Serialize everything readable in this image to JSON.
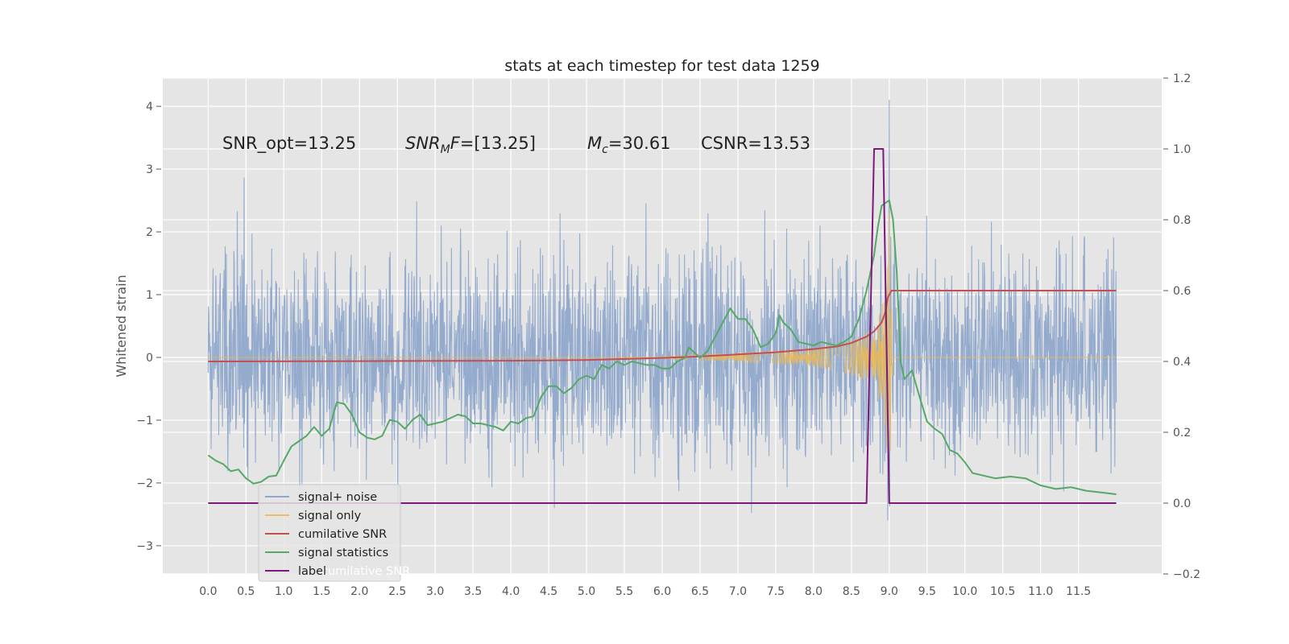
{
  "chart_data": {
    "type": "line",
    "title": "stats at each timestep for test data 1259",
    "xlabel": "",
    "ylabel": "Whitened strain",
    "y2label": "",
    "xlim": [
      -0.6,
      12.6
    ],
    "ylim": [
      -3.45,
      4.45
    ],
    "y2lim": [
      -0.2,
      1.2
    ],
    "grid": true,
    "x_ticks": [
      "0.0",
      "0.5",
      "1.0",
      "1.5",
      "2.0",
      "2.5",
      "3.0",
      "3.5",
      "4.0",
      "4.5",
      "5.0",
      "5.5",
      "6.0",
      "6.5",
      "7.0",
      "7.5",
      "8.0",
      "8.5",
      "9.0",
      "9.5",
      "10.0",
      "10.5",
      "11.0",
      "11.5"
    ],
    "y_ticks": [
      "4",
      "3",
      "2",
      "1",
      "0",
      "−1",
      "−2",
      "−3"
    ],
    "y2_ticks": [
      "1.2",
      "1.0",
      "0.8",
      "0.6",
      "0.4",
      "0.2",
      "0.0",
      "−0.2"
    ],
    "annotations": {
      "snr_opt": "SNR_opt=13.25",
      "snr_mf_label": "SNR",
      "snr_mf_sub": "M",
      "snr_mf_mid": "F",
      "snr_mf_value": "=[13.25]",
      "mc_label": "M",
      "mc_sub": "c",
      "mc_value": "=30.61",
      "csnr": "CSNR=13.53"
    },
    "legend": {
      "placement": "lower-left",
      "entries": [
        "signal+ noise",
        "signal only",
        "cumilative SNR",
        "signal statistics",
        "label"
      ],
      "ghost_text": "cumilative SNR"
    },
    "series": [
      {
        "name": "signal+ noise",
        "axis": "left",
        "color": "#8fa8cc",
        "x_range": [
          0.0,
          12.0
        ],
        "y_range": [
          -3.3,
          4.1
        ],
        "peak": {
          "x": 9.0,
          "y": 4.1
        }
      },
      {
        "name": "signal only",
        "axis": "left",
        "color": "#e8b85a",
        "envelope": [
          [
            6.0,
            0.02
          ],
          [
            6.5,
            0.05
          ],
          [
            7.0,
            0.08
          ],
          [
            7.5,
            0.11
          ],
          [
            8.0,
            0.16
          ],
          [
            8.3,
            0.22
          ],
          [
            8.5,
            0.28
          ],
          [
            8.7,
            0.4
          ],
          [
            8.8,
            0.52
          ],
          [
            8.9,
            0.78
          ],
          [
            8.95,
            1.2
          ],
          [
            9.0,
            2.3
          ],
          [
            9.05,
            0.0
          ]
        ]
      },
      {
        "name": "cumilative SNR",
        "axis": "right",
        "color": "#c44e52",
        "points": [
          [
            0.0,
            0.4
          ],
          [
            2.0,
            0.401
          ],
          [
            4.0,
            0.402
          ],
          [
            5.0,
            0.404
          ],
          [
            6.0,
            0.41
          ],
          [
            6.5,
            0.414
          ],
          [
            7.0,
            0.42
          ],
          [
            7.5,
            0.426
          ],
          [
            8.0,
            0.435
          ],
          [
            8.3,
            0.442
          ],
          [
            8.5,
            0.452
          ],
          [
            8.7,
            0.47
          ],
          [
            8.8,
            0.485
          ],
          [
            8.9,
            0.51
          ],
          [
            8.95,
            0.54
          ],
          [
            8.98,
            0.58
          ],
          [
            9.03,
            0.6
          ],
          [
            12.0,
            0.6
          ]
        ]
      },
      {
        "name": "signal statistics",
        "axis": "right",
        "color": "#55a868",
        "points": [
          [
            0.0,
            0.135
          ],
          [
            0.1,
            0.12
          ],
          [
            0.2,
            0.11
          ],
          [
            0.3,
            0.09
          ],
          [
            0.4,
            0.095
          ],
          [
            0.5,
            0.07
          ],
          [
            0.6,
            0.055
          ],
          [
            0.7,
            0.06
          ],
          [
            0.8,
            0.075
          ],
          [
            0.9,
            0.078
          ],
          [
            1.0,
            0.12
          ],
          [
            1.1,
            0.16
          ],
          [
            1.2,
            0.175
          ],
          [
            1.3,
            0.19
          ],
          [
            1.4,
            0.215
          ],
          [
            1.5,
            0.19
          ],
          [
            1.6,
            0.21
          ],
          [
            1.7,
            0.285
          ],
          [
            1.8,
            0.28
          ],
          [
            1.9,
            0.25
          ],
          [
            2.0,
            0.2
          ],
          [
            2.1,
            0.185
          ],
          [
            2.2,
            0.18
          ],
          [
            2.3,
            0.19
          ],
          [
            2.4,
            0.235
          ],
          [
            2.5,
            0.23
          ],
          [
            2.6,
            0.21
          ],
          [
            2.7,
            0.235
          ],
          [
            2.8,
            0.25
          ],
          [
            2.9,
            0.22
          ],
          [
            3.0,
            0.225
          ],
          [
            3.1,
            0.23
          ],
          [
            3.2,
            0.24
          ],
          [
            3.3,
            0.25
          ],
          [
            3.4,
            0.245
          ],
          [
            3.5,
            0.225
          ],
          [
            3.6,
            0.225
          ],
          [
            3.7,
            0.22
          ],
          [
            3.8,
            0.215
          ],
          [
            3.9,
            0.205
          ],
          [
            4.0,
            0.23
          ],
          [
            4.1,
            0.225
          ],
          [
            4.2,
            0.24
          ],
          [
            4.3,
            0.245
          ],
          [
            4.4,
            0.3
          ],
          [
            4.5,
            0.33
          ],
          [
            4.6,
            0.33
          ],
          [
            4.7,
            0.31
          ],
          [
            4.8,
            0.325
          ],
          [
            4.9,
            0.35
          ],
          [
            5.0,
            0.36
          ],
          [
            5.1,
            0.35
          ],
          [
            5.2,
            0.39
          ],
          [
            5.3,
            0.38
          ],
          [
            5.4,
            0.4
          ],
          [
            5.5,
            0.39
          ],
          [
            5.6,
            0.4
          ],
          [
            5.7,
            0.395
          ],
          [
            5.8,
            0.39
          ],
          [
            5.9,
            0.39
          ],
          [
            6.0,
            0.38
          ],
          [
            6.1,
            0.38
          ],
          [
            6.2,
            0.4
          ],
          [
            6.3,
            0.41
          ],
          [
            6.35,
            0.44
          ],
          [
            6.45,
            0.42
          ],
          [
            6.5,
            0.41
          ],
          [
            6.6,
            0.43
          ],
          [
            6.7,
            0.47
          ],
          [
            6.8,
            0.51
          ],
          [
            6.9,
            0.55
          ],
          [
            7.0,
            0.52
          ],
          [
            7.1,
            0.52
          ],
          [
            7.2,
            0.49
          ],
          [
            7.3,
            0.44
          ],
          [
            7.4,
            0.45
          ],
          [
            7.5,
            0.48
          ],
          [
            7.55,
            0.53
          ],
          [
            7.6,
            0.51
          ],
          [
            7.7,
            0.49
          ],
          [
            7.8,
            0.455
          ],
          [
            7.9,
            0.45
          ],
          [
            8.0,
            0.445
          ],
          [
            8.1,
            0.455
          ],
          [
            8.2,
            0.45
          ],
          [
            8.3,
            0.445
          ],
          [
            8.4,
            0.455
          ],
          [
            8.5,
            0.47
          ],
          [
            8.6,
            0.52
          ],
          [
            8.7,
            0.6
          ],
          [
            8.8,
            0.7
          ],
          [
            8.85,
            0.78
          ],
          [
            8.9,
            0.84
          ],
          [
            9.0,
            0.855
          ],
          [
            9.05,
            0.8
          ],
          [
            9.1,
            0.65
          ],
          [
            9.15,
            0.4
          ],
          [
            9.2,
            0.35
          ],
          [
            9.3,
            0.375
          ],
          [
            9.4,
            0.3
          ],
          [
            9.5,
            0.23
          ],
          [
            9.6,
            0.21
          ],
          [
            9.7,
            0.195
          ],
          [
            9.8,
            0.15
          ],
          [
            9.9,
            0.14
          ],
          [
            10.0,
            0.115
          ],
          [
            10.1,
            0.085
          ],
          [
            10.2,
            0.08
          ],
          [
            10.4,
            0.07
          ],
          [
            10.6,
            0.075
          ],
          [
            10.8,
            0.07
          ],
          [
            11.0,
            0.05
          ],
          [
            11.2,
            0.04
          ],
          [
            11.4,
            0.045
          ],
          [
            11.6,
            0.035
          ],
          [
            11.8,
            0.03
          ],
          [
            12.0,
            0.025
          ]
        ]
      },
      {
        "name": "label",
        "axis": "right",
        "color": "#7b1a7b",
        "points": [
          [
            0.0,
            0.0
          ],
          [
            8.7,
            0.0
          ],
          [
            8.8,
            1.0
          ],
          [
            8.92,
            1.0
          ],
          [
            9.0,
            0.0
          ],
          [
            12.0,
            0.0
          ]
        ]
      }
    ]
  }
}
